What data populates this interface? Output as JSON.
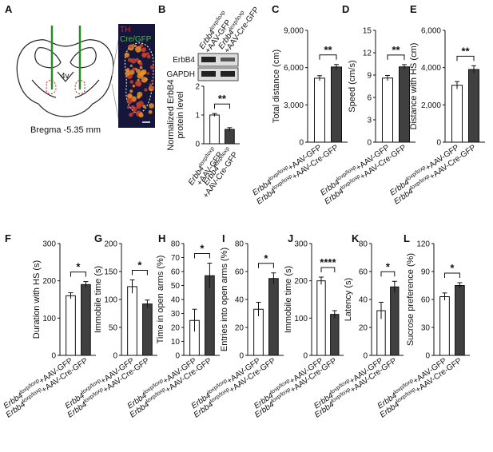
{
  "panel_a": {
    "panel": "A",
    "ventricle": "4v",
    "bregma": "Bregma -5.35 mm",
    "stain_1": "TH",
    "stain_2": "Cre/GFP"
  },
  "blot": {
    "rows": [
      "ErbB4",
      "GAPDH"
    ]
  },
  "chart_data": [
    {
      "type": "bar",
      "panel": "B",
      "ylabel": [
        "Normalized ErbB4",
        "protein level"
      ],
      "two_line_labels": true,
      "categories": [
        {
          "gene": "Erbb4",
          "genotype": "loxp/loxp",
          "treatment": "+AAV-GFP"
        },
        {
          "gene": "Erbb4",
          "genotype": "loxp/loxp",
          "treatment": "+AAV-Cre-GFP"
        }
      ],
      "values": [
        1.0,
        0.5
      ],
      "errors": [
        0.05,
        0.06
      ],
      "colors": [
        "#ffffff",
        "#404040"
      ],
      "ylim": [
        0,
        2
      ],
      "yticks": [
        0,
        1,
        2
      ],
      "significance": "**"
    },
    {
      "type": "bar",
      "panel": "C",
      "ylabel": [
        "Total distance (cm)"
      ],
      "categories": [
        {
          "gene": "Erbb4",
          "genotype": "loxp/loxp",
          "treatment": "+AAV-GFP"
        },
        {
          "gene": "Erbb4",
          "genotype": "loxp/loxp",
          "treatment": "+AAV-Cre-GFP"
        }
      ],
      "values": [
        5150,
        6050
      ],
      "errors": [
        200,
        200
      ],
      "colors": [
        "#ffffff",
        "#404040"
      ],
      "ylim": [
        0,
        9000
      ],
      "yticks": [
        0,
        {
          "value": 3000,
          "label": "3,000"
        },
        {
          "value": 6000,
          "label": "6,000"
        },
        {
          "value": 9000,
          "label": "9,000"
        }
      ],
      "significance": "**"
    },
    {
      "type": "bar",
      "panel": "D",
      "ylabel": [
        "Speed (cm/s)"
      ],
      "categories": [
        {
          "gene": "Erbb4",
          "genotype": "loxp/loxp",
          "treatment": "+AAV-GFP"
        },
        {
          "gene": "Erbb4",
          "genotype": "loxp/loxp",
          "treatment": "+AAV-Cre-GFP"
        }
      ],
      "values": [
        8.6,
        10.1
      ],
      "errors": [
        0.35,
        0.3
      ],
      "colors": [
        "#ffffff",
        "#404040"
      ],
      "ylim": [
        0,
        15
      ],
      "yticks": [
        0,
        3,
        6,
        9,
        12,
        15
      ],
      "significance": "**"
    },
    {
      "type": "bar",
      "panel": "E",
      "ylabel": [
        "Distance with HS (cm)"
      ],
      "categories": [
        {
          "gene": "Erbb4",
          "genotype": "loxp/loxp",
          "treatment": "+AAV-GFP"
        },
        {
          "gene": "Erbb4",
          "genotype": "loxp/loxp",
          "treatment": "+AAV-Cre-GFP"
        }
      ],
      "values": [
        3050,
        3900
      ],
      "errors": [
        200,
        200
      ],
      "colors": [
        "#ffffff",
        "#404040"
      ],
      "ylim": [
        0,
        6000
      ],
      "yticks": [
        0,
        {
          "value": 2000,
          "label": "2,000"
        },
        {
          "value": 4000,
          "label": "4,000"
        },
        {
          "value": 6000,
          "label": "6,000"
        }
      ],
      "significance": "**"
    },
    {
      "type": "bar",
      "panel": "F",
      "ylabel": [
        "Duration with HS (s)"
      ],
      "categories": [
        {
          "gene": "Erbb4",
          "genotype": "loxp/loxp",
          "treatment": "+AAV-GFP"
        },
        {
          "gene": "Erbb4",
          "genotype": "loxp/loxp",
          "treatment": "+AAV-Cre-GFP"
        }
      ],
      "values": [
        160,
        190
      ],
      "errors": [
        8,
        8
      ],
      "colors": [
        "#ffffff",
        "#404040"
      ],
      "ylim": [
        0,
        300
      ],
      "yticks": [
        0,
        100,
        200,
        300
      ],
      "significance": "*"
    },
    {
      "type": "bar",
      "panel": "G",
      "ylabel": [
        "Immobile time (s)"
      ],
      "categories": [
        {
          "gene": "Erbb4",
          "genotype": "loxp/loxp",
          "treatment": "+AAV-GFP"
        },
        {
          "gene": "Erbb4",
          "genotype": "loxp/loxp",
          "treatment": "+AAV-Cre-GFP"
        }
      ],
      "values": [
        123,
        92
      ],
      "errors": [
        12,
        7
      ],
      "colors": [
        "#ffffff",
        "#404040"
      ],
      "ylim": [
        0,
        200
      ],
      "yticks": [
        0,
        50,
        100,
        150,
        200
      ],
      "significance": "*"
    },
    {
      "type": "bar",
      "panel": "H",
      "ylabel": [
        "Time in open arms (%)"
      ],
      "categories": [
        {
          "gene": "Erbb4",
          "genotype": "loxp/loxp",
          "treatment": "+AAV-GFP"
        },
        {
          "gene": "Erbb4",
          "genotype": "loxp/loxp",
          "treatment": "+AAV-Cre-GFP"
        }
      ],
      "values": [
        25,
        57
      ],
      "errors": [
        8,
        9
      ],
      "colors": [
        "#ffffff",
        "#404040"
      ],
      "ylim": [
        0,
        80
      ],
      "yticks": [
        0,
        10,
        20,
        30,
        40,
        50,
        60,
        70,
        80
      ],
      "significance": "*"
    },
    {
      "type": "bar",
      "panel": "I",
      "ylabel": [
        "Entries into open arms (%)"
      ],
      "categories": [
        {
          "gene": "Erbb4",
          "genotype": "loxp/loxp",
          "treatment": "+AAV-GFP"
        },
        {
          "gene": "Erbb4",
          "genotype": "loxp/loxp",
          "treatment": "+AAV-Cre-GFP"
        }
      ],
      "values": [
        33,
        55
      ],
      "errors": [
        5,
        4
      ],
      "colors": [
        "#ffffff",
        "#404040"
      ],
      "ylim": [
        0,
        80
      ],
      "yticks": [
        0,
        20,
        40,
        60,
        80
      ],
      "significance": "*"
    },
    {
      "type": "bar",
      "panel": "J",
      "ylabel": [
        "Immobile time (s)"
      ],
      "categories": [
        {
          "gene": "Erbb4",
          "genotype": "loxp/loxp",
          "treatment": "+AAV-GFP"
        },
        {
          "gene": "Erbb4",
          "genotype": "loxp/loxp",
          "treatment": "+AAV-Cre-GFP"
        }
      ],
      "values": [
        200,
        110
      ],
      "errors": [
        10,
        10
      ],
      "colors": [
        "#ffffff",
        "#404040"
      ],
      "ylim": [
        0,
        300
      ],
      "yticks": [
        0,
        100,
        200,
        300
      ],
      "significance": "****"
    },
    {
      "type": "bar",
      "panel": "K",
      "ylabel": [
        "Latency (s)"
      ],
      "categories": [
        {
          "gene": "Erbb4",
          "genotype": "loxp/loxp",
          "treatment": "+AAV-GFP"
        },
        {
          "gene": "Erbb4",
          "genotype": "loxp/loxp",
          "treatment": "+AAV-Cre-GFP"
        }
      ],
      "values": [
        32,
        49
      ],
      "errors": [
        6,
        4
      ],
      "colors": [
        "#ffffff",
        "#404040"
      ],
      "ylim": [
        0,
        80
      ],
      "yticks": [
        0,
        20,
        40,
        60,
        80
      ],
      "significance": "*"
    },
    {
      "type": "bar",
      "panel": "L",
      "ylabel": [
        "Sucrose preference (%)"
      ],
      "categories": [
        {
          "gene": "Erbb4",
          "genotype": "loxp/loxp",
          "treatment": "+AAV-GFP"
        },
        {
          "gene": "Erbb4",
          "genotype": "loxp/loxp",
          "treatment": "+AAV-Cre-GFP"
        }
      ],
      "values": [
        63,
        75
      ],
      "errors": [
        4,
        3
      ],
      "colors": [
        "#ffffff",
        "#404040"
      ],
      "ylim": [
        0,
        120
      ],
      "yticks": [
        0,
        30,
        60,
        90,
        120
      ],
      "significance": "*"
    }
  ]
}
